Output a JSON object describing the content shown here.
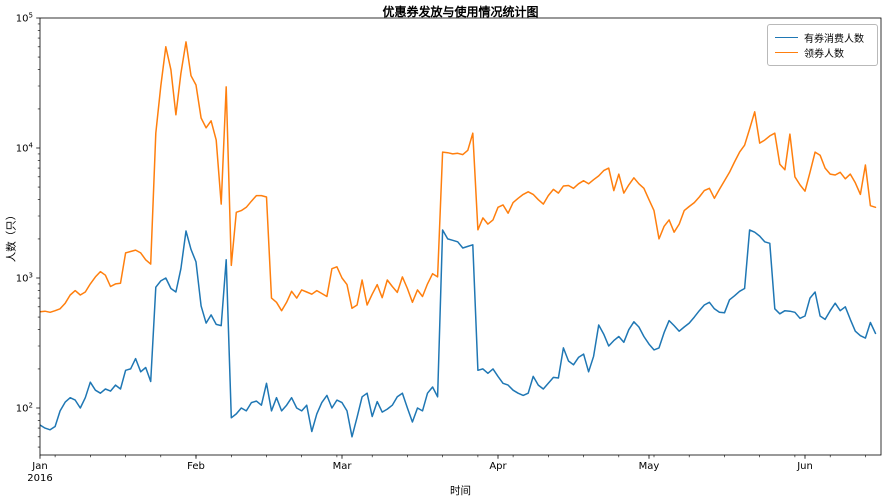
{
  "figure_title": "优惠券发放与使用情况统计图",
  "chart_data": {
    "type": "line",
    "title": "优惠券发放与使用情况统计图",
    "xlabel": "时间",
    "ylabel": "人数（只）",
    "yscale": "log",
    "ylim": [
      43,
      100000
    ],
    "x_start_date": "2016-01-01",
    "x_unit": "day",
    "x_days_total": 167,
    "grid": "off",
    "xticks": [
      {
        "day": 0,
        "label": "Jan",
        "sublabel": "2016"
      },
      {
        "day": 31,
        "label": "Feb",
        "sublabel": ""
      },
      {
        "day": 60,
        "label": "Mar",
        "sublabel": ""
      },
      {
        "day": 91,
        "label": "Apr",
        "sublabel": ""
      },
      {
        "day": 121,
        "label": "May",
        "sublabel": ""
      },
      {
        "day": 152,
        "label": "Jun",
        "sublabel": ""
      }
    ],
    "x_minor_tick_interval_days": 7,
    "x_minor_tick_offset_days": 3,
    "yticks": [
      {
        "base": "10",
        "exp": "2",
        "value": 100
      },
      {
        "base": "10",
        "exp": "3",
        "value": 1000
      },
      {
        "base": "10",
        "exp": "4",
        "value": 10000
      },
      {
        "base": "10",
        "exp": "5",
        "value": 100000
      }
    ],
    "legend": {
      "position": "upper right",
      "entries": [
        {
          "label": "有券消费人数",
          "color": "#1f77b4"
        },
        {
          "label": "领券人数",
          "color": "#ff7f0e"
        }
      ]
    },
    "series": [
      {
        "name": "有券消费人数",
        "color": "#1f77b4",
        "values": [
          74,
          70,
          68,
          72,
          95,
          111,
          120,
          115,
          100,
          120,
          158,
          137,
          130,
          140,
          135,
          150,
          140,
          195,
          200,
          240,
          190,
          205,
          160,
          850,
          950,
          1000,
          830,
          780,
          1180,
          2300,
          1660,
          1330,
          610,
          450,
          520,
          440,
          430,
          1380,
          84,
          90,
          100,
          95,
          110,
          113,
          105,
          155,
          95,
          120,
          95,
          105,
          120,
          100,
          95,
          105,
          66,
          90,
          110,
          125,
          100,
          115,
          110,
          95,
          60,
          85,
          122,
          130,
          86,
          112,
          93,
          98,
          105,
          122,
          130,
          100,
          78,
          100,
          95,
          130,
          145,
          122,
          2340,
          2000,
          1950,
          1900,
          1700,
          1750,
          1800,
          195,
          200,
          185,
          200,
          175,
          155,
          150,
          137,
          130,
          125,
          130,
          175,
          150,
          140,
          155,
          172,
          170,
          290,
          230,
          215,
          245,
          260,
          190,
          250,
          435,
          370,
          300,
          330,
          355,
          320,
          400,
          460,
          420,
          355,
          310,
          280,
          290,
          380,
          470,
          430,
          390,
          420,
          450,
          500,
          560,
          620,
          650,
          580,
          545,
          540,
          680,
          730,
          790,
          830,
          2340,
          2250,
          2100,
          1900,
          1850,
          580,
          530,
          560,
          555,
          545,
          490,
          510,
          700,
          780,
          510,
          480,
          560,
          640,
          560,
          600,
          480,
          390,
          360,
          345,
          455,
          375
        ]
      },
      {
        "name": "领券人数",
        "color": "#ff7f0e",
        "values": [
          550,
          555,
          545,
          560,
          580,
          640,
          740,
          800,
          740,
          780,
          900,
          1020,
          1120,
          1050,
          860,
          900,
          910,
          1560,
          1600,
          1640,
          1560,
          1380,
          1280,
          13000,
          30000,
          60000,
          40000,
          18000,
          37500,
          65500,
          36000,
          30500,
          17000,
          14300,
          16200,
          11500,
          3700,
          29500,
          1250,
          3200,
          3300,
          3500,
          3900,
          4300,
          4300,
          4200,
          700,
          650,
          560,
          650,
          790,
          700,
          810,
          780,
          750,
          800,
          760,
          720,
          1180,
          1220,
          1000,
          890,
          585,
          620,
          965,
          620,
          750,
          890,
          705,
          965,
          860,
          775,
          1020,
          830,
          650,
          810,
          720,
          900,
          1080,
          1020,
          9300,
          9200,
          9000,
          9100,
          8900,
          9600,
          13000,
          2350,
          2900,
          2600,
          2800,
          3500,
          3650,
          3150,
          3800,
          4100,
          4400,
          4600,
          4400,
          4000,
          3700,
          4300,
          4800,
          4500,
          5100,
          5150,
          4900,
          5300,
          5600,
          5300,
          5700,
          6100,
          6700,
          7000,
          4700,
          6300,
          4500,
          5200,
          5900,
          5300,
          4900,
          4000,
          3300,
          2000,
          2500,
          2800,
          2250,
          2600,
          3300,
          3550,
          3800,
          4200,
          4700,
          4900,
          4100,
          4800,
          5600,
          6500,
          7800,
          9300,
          10500,
          14000,
          19000,
          10900,
          11500,
          12400,
          13000,
          7500,
          6800,
          12800,
          6000,
          5200,
          4650,
          6500,
          9300,
          8800,
          7000,
          6300,
          6200,
          6500,
          5800,
          6300,
          5400,
          4400,
          7400,
          3600,
          3500
        ]
      }
    ]
  }
}
